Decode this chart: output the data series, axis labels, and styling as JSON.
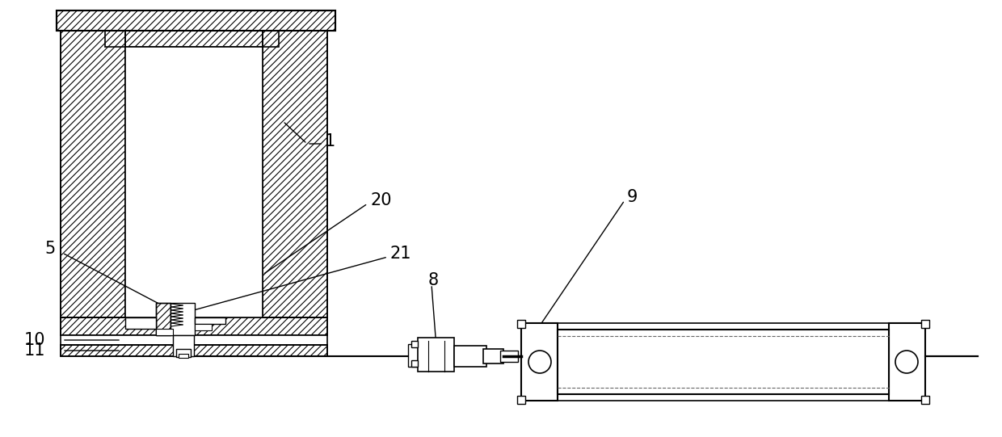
{
  "bg_color": "#ffffff",
  "line_color": "#000000",
  "figsize": [
    12.4,
    5.41
  ],
  "dpi": 100
}
